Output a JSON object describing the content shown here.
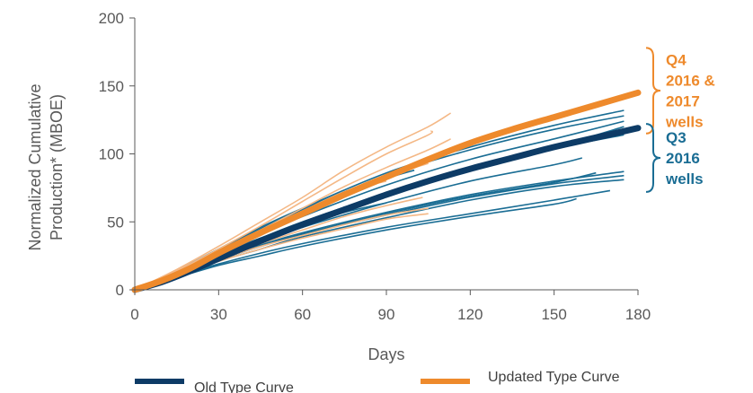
{
  "chart_data": {
    "type": "line",
    "title": "",
    "xlabel": "Days",
    "ylabel_lines": [
      "Normalized Cumulative",
      "Production* (MBOE)"
    ],
    "xlim": [
      0,
      180
    ],
    "ylim": [
      0,
      200
    ],
    "xticks": [
      0,
      30,
      60,
      90,
      120,
      150,
      180
    ],
    "yticks": [
      0,
      50,
      100,
      150,
      200
    ],
    "grid": false,
    "colors": {
      "old": "#0d3b66",
      "old_wells": "#1a6d94",
      "updated": "#ee8a2c",
      "updated_wells": "#f4b886",
      "axis": "#595959"
    },
    "series": [
      {
        "name": "Old Type Curve",
        "role": "type_curve",
        "color": "#0d3b66",
        "x": [
          0,
          10,
          20,
          30,
          45,
          60,
          75,
          90,
          105,
          120,
          135,
          150,
          165,
          180
        ],
        "y": [
          0,
          6,
          14,
          23,
          36,
          48,
          59,
          70,
          80,
          89,
          97,
          105,
          112,
          119
        ]
      },
      {
        "name": "Updated Type Curve",
        "role": "type_curve",
        "color": "#ee8a2c",
        "x": [
          0,
          10,
          20,
          30,
          45,
          60,
          75,
          90,
          105,
          120,
          135,
          150,
          165,
          180
        ],
        "y": [
          0,
          7,
          16,
          27,
          42,
          56,
          70,
          83,
          96,
          108,
          118,
          127,
          136,
          145
        ]
      }
    ],
    "well_groups": [
      {
        "color": "#1a6d94",
        "wells": [
          {
            "x": [
              0,
              15,
              30,
              45,
              60,
              90,
              120,
              150,
              175
            ],
            "y": [
              0,
              12,
              26,
              38,
              50,
              71,
              90,
              104,
              114
            ]
          },
          {
            "x": [
              0,
              15,
              30,
              45,
              60,
              90,
              120,
              150,
              175
            ],
            "y": [
              0,
              12,
              25,
              37,
              49,
              70,
              89,
              105,
              120
            ]
          },
          {
            "x": [
              0,
              15,
              30,
              45,
              60,
              90,
              120,
              150,
              175
            ],
            "y": [
              0,
              13,
              27,
              41,
              54,
              77,
              96,
              111,
              124
            ]
          },
          {
            "x": [
              0,
              15,
              30,
              45,
              60,
              90,
              120,
              150,
              175
            ],
            "y": [
              0,
              14,
              29,
              44,
              58,
              84,
              103,
              118,
              128
            ]
          },
          {
            "x": [
              0,
              15,
              30,
              45,
              60,
              90,
              120,
              150,
              175
            ],
            "y": [
              0,
              14,
              30,
              46,
              60,
              86,
              105,
              121,
              132
            ]
          },
          {
            "x": [
              0,
              15,
              30,
              45,
              60,
              90,
              120,
              150,
              160
            ],
            "y": [
              0,
              12,
              25,
              36,
              46,
              64,
              80,
              92,
              97
            ]
          },
          {
            "x": [
              0,
              15,
              30,
              45,
              60,
              90,
              120,
              150,
              175
            ],
            "y": [
              0,
              11,
              22,
              32,
              41,
              55,
              68,
              78,
              84
            ]
          },
          {
            "x": [
              0,
              15,
              30,
              45,
              60,
              90,
              120,
              150,
              175
            ],
            "y": [
              0,
              11,
              23,
              33,
              42,
              57,
              70,
              80,
              87
            ]
          },
          {
            "x": [
              0,
              15,
              30,
              45,
              60,
              90,
              120,
              150,
              175
            ],
            "y": [
              0,
              10,
              21,
              30,
              39,
              53,
              66,
              76,
              81
            ]
          },
          {
            "x": [
              0,
              15,
              30,
              45,
              60,
              90,
              120,
              150,
              165
            ],
            "y": [
              0,
              11,
              22,
              32,
              41,
              56,
              69,
              79,
              86
            ]
          },
          {
            "x": [
              0,
              15,
              30,
              45,
              60,
              90,
              120,
              150,
              170
            ],
            "y": [
              0,
              10,
              19,
              27,
              34,
              46,
              56,
              66,
              73
            ]
          },
          {
            "x": [
              0,
              15,
              30,
              45,
              60,
              90,
              120,
              150,
              158
            ],
            "y": [
              0,
              9,
              18,
              25,
              32,
              44,
              54,
              63,
              67
            ]
          },
          {
            "x": [
              0,
              15,
              30,
              45,
              60,
              75,
              90
            ],
            "y": [
              0,
              12,
              26,
              38,
              48,
              57,
              64
            ]
          },
          {
            "x": [
              0,
              15,
              30,
              45,
              60,
              75,
              90,
              100
            ],
            "y": [
              0,
              14,
              30,
              45,
              59,
              72,
              82,
              88
            ]
          }
        ]
      },
      {
        "color": "#f4b886",
        "wells": [
          {
            "x": [
              0,
              15,
              30,
              45,
              60,
              75,
              90,
              105,
              113
            ],
            "y": [
              0,
              15,
              32,
              50,
              68,
              88,
              105,
              120,
              130
            ]
          },
          {
            "x": [
              0,
              15,
              30,
              45,
              60,
              75,
              90,
              105,
              106
            ],
            "y": [
              0,
              14,
              30,
              47,
              65,
              83,
              100,
              114,
              117
            ]
          },
          {
            "x": [
              0,
              15,
              30,
              45,
              60,
              75,
              90,
              105,
              113
            ],
            "y": [
              0,
              13,
              28,
              44,
              60,
              76,
              90,
              103,
              111
            ]
          },
          {
            "x": [
              0,
              15,
              30,
              45,
              60,
              75,
              90,
              105
            ],
            "y": [
              0,
              13,
              28,
              42,
              56,
              70,
              83,
              93
            ]
          },
          {
            "x": [
              0,
              15,
              30,
              45,
              60,
              75,
              90
            ],
            "y": [
              0,
              14,
              29,
              44,
              58,
              72,
              80
            ]
          },
          {
            "x": [
              0,
              15,
              30,
              45,
              60,
              75,
              90,
              105
            ],
            "y": [
              0,
              11,
              22,
              32,
              40,
              48,
              55,
              60
            ]
          },
          {
            "x": [
              0,
              15,
              30,
              45,
              60,
              75,
              90,
              105
            ],
            "y": [
              0,
              11,
              21,
              30,
              38,
              45,
              52,
              56
            ]
          },
          {
            "x": [
              0,
              15,
              30,
              45,
              60,
              75,
              90,
              103
            ],
            "y": [
              0,
              12,
              24,
              34,
              44,
              54,
              62,
              68
            ]
          }
        ]
      }
    ],
    "legend": [
      {
        "label": "Old Type Curve",
        "color": "#0d3b66"
      },
      {
        "label": "Updated Type Curve",
        "color": "#ee8a2c"
      }
    ],
    "annotations": [
      {
        "lines": [
          "Q4",
          "2016 &",
          "2017",
          "wells"
        ],
        "color": "#ee8a2c",
        "y_range": [
          115,
          178
        ]
      },
      {
        "lines": [
          "Q3",
          "2016",
          "wells"
        ],
        "color": "#1a6d94",
        "y_range": [
          72,
          122
        ]
      }
    ]
  }
}
